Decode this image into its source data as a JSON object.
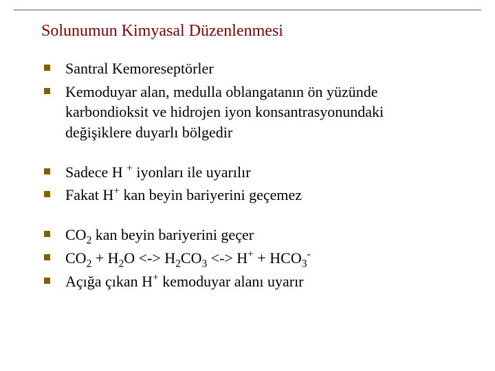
{
  "colors": {
    "title": "#800000",
    "bullet": "#806000",
    "text": "#000000",
    "rule": "#606060",
    "background": "#ffffff"
  },
  "typography": {
    "title_fontsize_pt": 18,
    "body_fontsize_pt": 16,
    "font_family": "Times New Roman"
  },
  "title": "Solunumun Kimyasal Düzenlenmesi",
  "groups": [
    {
      "items": [
        {
          "html": "Santral Kemoreseptörler"
        },
        {
          "html": "Kemoduyar alan, medulla oblangatanın ön yüzünde karbondioksit ve hidrojen iyon konsantrasyonundaki değişiklere duyarlı bölgedir"
        }
      ]
    },
    {
      "items": [
        {
          "html": "Sadece H <sup>+</sup> iyonları ile uyarılır"
        },
        {
          "html": "Fakat H<sup>+</sup> kan beyin bariyerini geçemez"
        }
      ]
    },
    {
      "items": [
        {
          "html": "CO<sub>2</sub> kan beyin bariyerini geçer"
        },
        {
          "html": "CO<sub>2</sub> + H<sub>2</sub>O &lt;-&gt; H<sub>2</sub>CO<sub>3</sub> &lt;-&gt; H<sup>+</sup> + HCO<sub>3</sub><sup>-</sup>"
        },
        {
          "html": "Açığa çıkan H<sup>+</sup> kemoduyar alanı uyarır"
        }
      ]
    }
  ]
}
